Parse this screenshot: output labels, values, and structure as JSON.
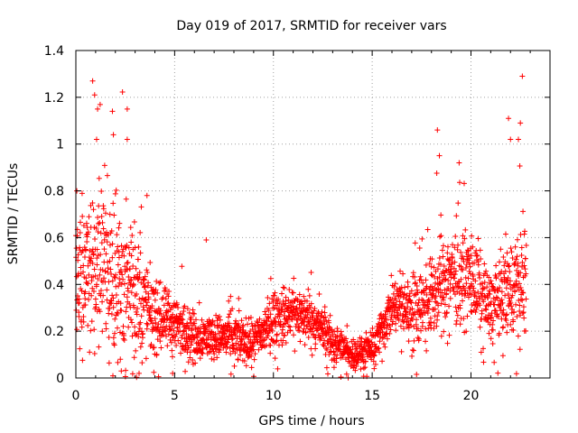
{
  "chart_data": {
    "type": "scatter",
    "title": "Day 019 of 2017, SRMTID for receiver vars",
    "xlabel": "GPS time / hours",
    "ylabel": "SRMTID / TECUs",
    "xlim": [
      0,
      24
    ],
    "ylim": [
      0,
      1.4
    ],
    "x_ticks": [
      0,
      5,
      10,
      15,
      20
    ],
    "x_tick_labels": [
      "0",
      "5",
      "10",
      "15",
      "20"
    ],
    "y_ticks": [
      0,
      0.2,
      0.4,
      0.6,
      0.8,
      1,
      1.2,
      1.4
    ],
    "y_tick_labels": [
      "0",
      "0.2",
      "0.4",
      "0.6",
      "0.8",
      "1",
      "1.2",
      "1.4"
    ],
    "grid": true,
    "marker": "plus",
    "colors": {
      "points": "#ff0000",
      "grid": "#a0a0a0",
      "axes": "#000000"
    },
    "data_extent_hours": [
      0,
      22.8
    ],
    "profile": [
      {
        "x": 0,
        "median": 0.42,
        "spread": 0.2
      },
      {
        "x": 1,
        "median": 0.48,
        "spread": 0.25
      },
      {
        "x": 2,
        "median": 0.45,
        "spread": 0.25
      },
      {
        "x": 3,
        "median": 0.38,
        "spread": 0.2
      },
      {
        "x": 4,
        "median": 0.25,
        "spread": 0.1
      },
      {
        "x": 5,
        "median": 0.24,
        "spread": 0.08
      },
      {
        "x": 6,
        "median": 0.18,
        "spread": 0.07
      },
      {
        "x": 7,
        "median": 0.18,
        "spread": 0.06
      },
      {
        "x": 8,
        "median": 0.17,
        "spread": 0.07
      },
      {
        "x": 9,
        "median": 0.15,
        "spread": 0.06
      },
      {
        "x": 10,
        "median": 0.25,
        "spread": 0.08
      },
      {
        "x": 11,
        "median": 0.28,
        "spread": 0.08
      },
      {
        "x": 12,
        "median": 0.25,
        "spread": 0.07
      },
      {
        "x": 13,
        "median": 0.15,
        "spread": 0.06
      },
      {
        "x": 14,
        "median": 0.1,
        "spread": 0.04
      },
      {
        "x": 15,
        "median": 0.12,
        "spread": 0.05
      },
      {
        "x": 16,
        "median": 0.3,
        "spread": 0.08
      },
      {
        "x": 17,
        "median": 0.3,
        "spread": 0.1
      },
      {
        "x": 18,
        "median": 0.35,
        "spread": 0.12
      },
      {
        "x": 19,
        "median": 0.45,
        "spread": 0.14
      },
      {
        "x": 20,
        "median": 0.42,
        "spread": 0.13
      },
      {
        "x": 21,
        "median": 0.3,
        "spread": 0.1
      },
      {
        "x": 22,
        "median": 0.38,
        "spread": 0.15
      },
      {
        "x": 22.8,
        "median": 0.42,
        "spread": 0.16
      }
    ],
    "highlights": [
      [
        0.85,
        1.27
      ],
      [
        0.95,
        1.21
      ],
      [
        1.1,
        1.15
      ],
      [
        1.85,
        1.14
      ],
      [
        2.6,
        1.15
      ],
      [
        1.9,
        1.04
      ],
      [
        1.05,
        1.02
      ],
      [
        2.6,
        1.02
      ],
      [
        0.05,
        0.8
      ],
      [
        3.6,
        0.78
      ],
      [
        18.3,
        1.06
      ],
      [
        18.4,
        0.95
      ],
      [
        19.4,
        0.92
      ],
      [
        22.6,
        1.29
      ],
      [
        21.9,
        1.11
      ],
      [
        22.5,
        1.09
      ],
      [
        22.0,
        1.02
      ],
      [
        22.4,
        1.02
      ],
      [
        6.6,
        0.59
      ],
      [
        15.1,
        0.04
      ],
      [
        3.2,
        0.02
      ],
      [
        2.3,
        0.03
      ],
      [
        4.9,
        0.02
      ],
      [
        14.2,
        0.05
      ]
    ]
  }
}
